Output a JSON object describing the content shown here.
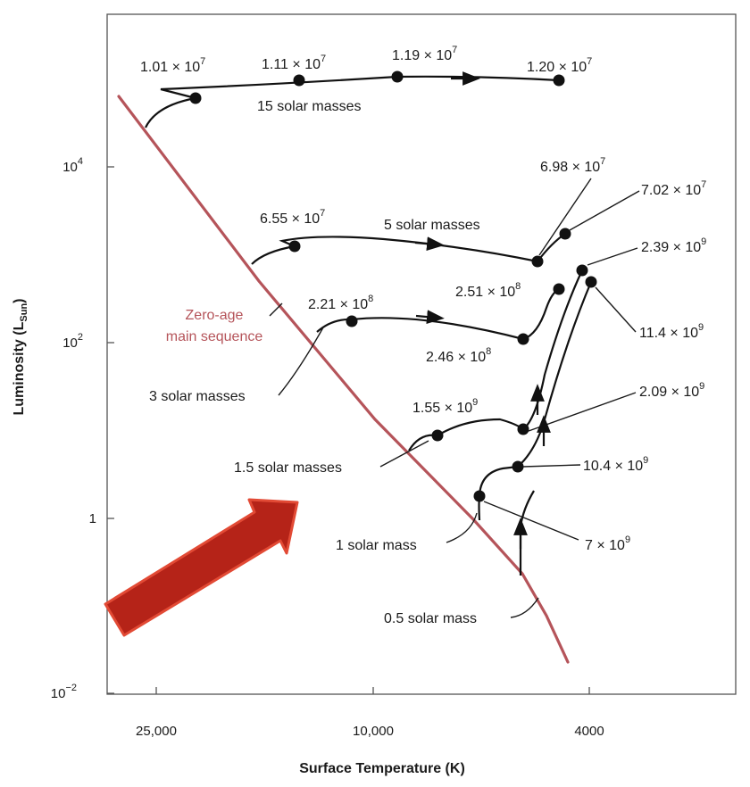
{
  "chart_data": {
    "type": "scatter",
    "xlabel_main": "Surface Temperature (K)",
    "ylabel_main": "Luminosity (L",
    "ylabel_sub": "Sun",
    "ylabel_close": ")",
    "x_scale": "log, reversed",
    "y_scale": "log",
    "x_ticks": [
      "25,000",
      "10,000",
      "4000"
    ],
    "y_ticks": [
      {
        "base": "10",
        "exp": "4"
      },
      {
        "base": "10",
        "exp": "2"
      },
      {
        "base": "1",
        "exp": ""
      },
      {
        "base": "10",
        "exp": "−2"
      }
    ],
    "zams_label": [
      "Zero-age",
      "main sequence"
    ],
    "zams_color": "#b5545a",
    "arrow_color": "#b52318",
    "tracks": [
      {
        "name": "15 solar masses",
        "ages": [
          {
            "base": "1.01 × 10",
            "exp": "7"
          },
          {
            "base": "1.11 × 10",
            "exp": "7"
          },
          {
            "base": "1.19 × 10",
            "exp": "7"
          },
          {
            "base": "1.20 × 10",
            "exp": "7"
          }
        ]
      },
      {
        "name": "5 solar masses",
        "ages": [
          {
            "base": "6.55 × 10",
            "exp": "7"
          },
          {
            "base": "6.98 × 10",
            "exp": "7"
          },
          {
            "base": "7.02 × 10",
            "exp": "7"
          }
        ]
      },
      {
        "name": "3 solar masses",
        "ages": [
          {
            "base": "2.21 × 10",
            "exp": "8"
          },
          {
            "base": "2.46 × 10",
            "exp": "8"
          },
          {
            "base": "2.51 × 10",
            "exp": "8"
          }
        ]
      },
      {
        "name": "1.5 solar masses",
        "ages": [
          {
            "base": "1.55 × 10",
            "exp": "9"
          },
          {
            "base": "2.09 × 10",
            "exp": "9"
          }
        ]
      },
      {
        "name": "1 solar mass",
        "ages": [
          {
            "base": "7 × 10",
            "exp": "9"
          },
          {
            "base": "10.4 × 10",
            "exp": "9"
          },
          {
            "base": "11.4 × 10",
            "exp": "9"
          },
          {
            "base": "2.39 × 10",
            "exp": "9"
          }
        ]
      },
      {
        "name": "0.5 solar mass",
        "ages": []
      }
    ]
  }
}
